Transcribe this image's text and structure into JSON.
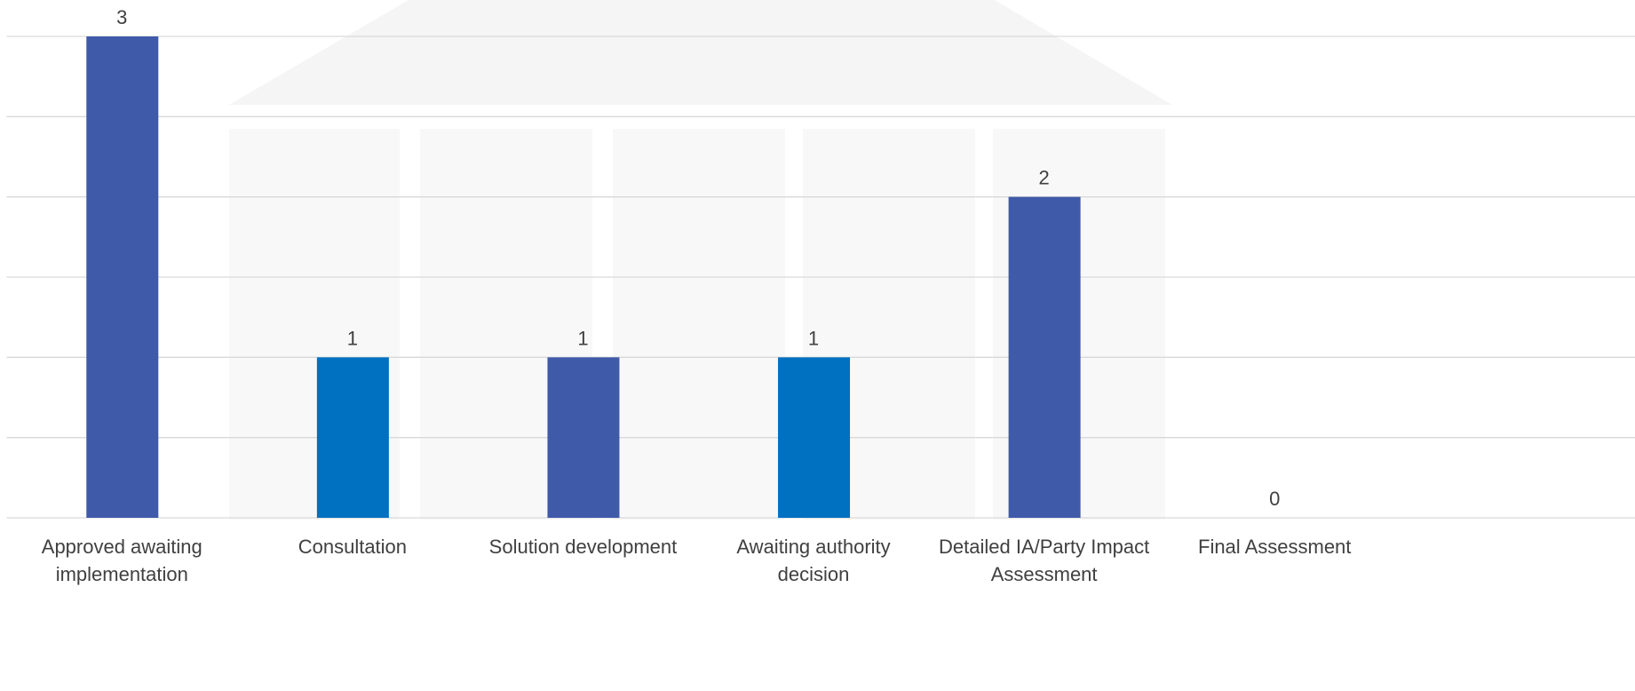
{
  "chart_data": {
    "type": "bar",
    "categories": [
      "Approved awaiting implementation",
      "Consultation",
      "Solution development",
      "Awaiting authority decision",
      "Detailed IA/Party Impact Assessment",
      "Final Assessment"
    ],
    "values": [
      3,
      1,
      1,
      1,
      2,
      0
    ],
    "colors": [
      "#3f5aa8",
      "#0070c0",
      "#3f5aa8",
      "#0070c0",
      "#3f5aa8",
      "#0070c0"
    ],
    "ylim": [
      0,
      3
    ],
    "yticks": [
      0,
      0.5,
      1,
      1.5,
      2,
      2.5,
      3
    ],
    "grid": true
  }
}
